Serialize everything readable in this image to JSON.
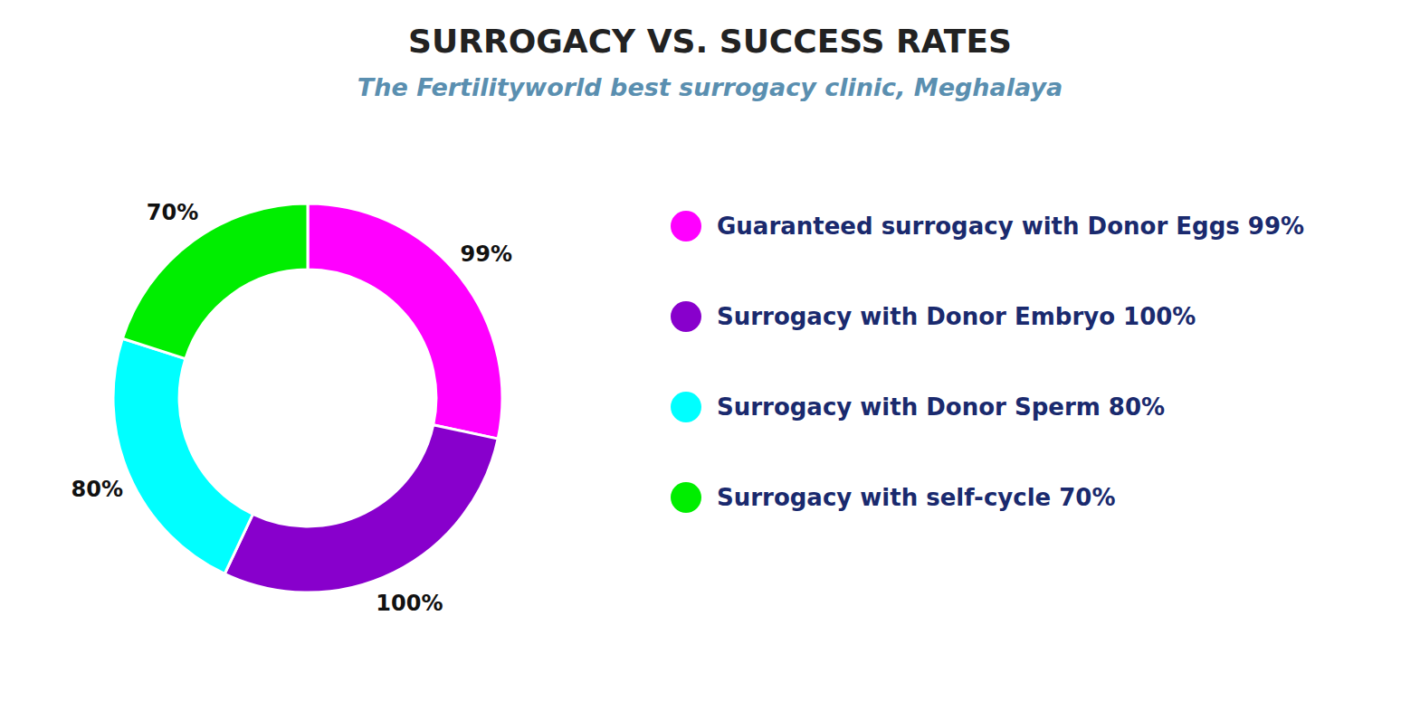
{
  "chart_data": {
    "type": "donut",
    "title": "SURROGACY VS. SUCCESS RATES",
    "subtitle": "The Fertilityworld best surrogacy clinic, Meghalaya",
    "categories": [
      "Guaranteed surrogacy with Donor Eggs 99%",
      "Surrogacy with Donor Embryo 100%",
      "Surrogacy with Donor Sperm 80%",
      "Surrogacy with self-cycle 70%"
    ],
    "values": [
      99,
      100,
      80,
      70
    ],
    "value_labels": [
      "99%",
      "100%",
      "80%",
      "70%"
    ],
    "colors": [
      "#ff00ff",
      "#8800cc",
      "#00ffff",
      "#00ee00"
    ],
    "data_labels": true,
    "legend": "right"
  }
}
